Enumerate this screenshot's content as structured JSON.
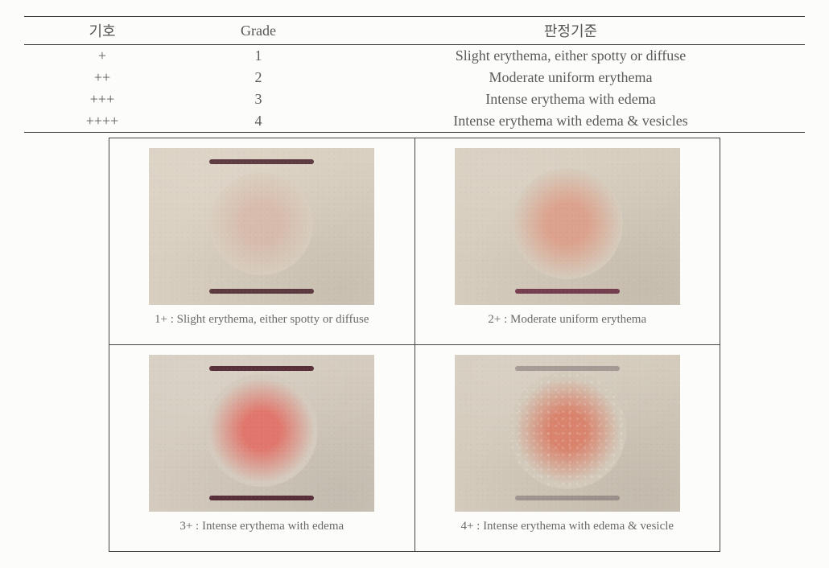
{
  "table": {
    "columns": [
      "기호",
      "Grade",
      "판정기준"
    ],
    "col_widths": [
      "20%",
      "20%",
      "60%"
    ],
    "rows": [
      [
        "+",
        "1",
        "Slight erythema, either spotty or diffuse"
      ],
      [
        "++",
        "2",
        "Moderate uniform erythema"
      ],
      [
        "+++",
        "3",
        "Intense erythema with edema"
      ],
      [
        "++++",
        "4",
        "Intense erythema with edema & vesicles"
      ]
    ],
    "border_color": "#3a3a3a",
    "text_color": "#5a5a5a",
    "fontsize": 18
  },
  "panels": [
    {
      "caption": "1+ : Slight erythema, either spotty or diffuse",
      "skin_base": "#d9cfc0",
      "spot": {
        "size": 128,
        "from": "#d8b6a6",
        "to": "#d9cfc0",
        "opacity": 0.75,
        "softness": 0.72
      },
      "marks": {
        "color": "#4e2a32",
        "show_top": true,
        "show_bot": true
      }
    },
    {
      "caption": "2+ : Moderate uniform erythema",
      "skin_base": "#d6ccbd",
      "spot": {
        "size": 138,
        "from": "#dd9d87",
        "to": "#d6ccbd",
        "opacity": 0.9,
        "softness": 0.7
      },
      "marks": {
        "color": "#6a2f44",
        "show_top": false,
        "show_bot": true
      }
    },
    {
      "caption": "3+ : Intense erythema with edema",
      "skin_base": "#d4cbbe",
      "spot": {
        "size": 140,
        "from": "#e1746a",
        "to": "#d4cbbe",
        "opacity": 0.98,
        "softness": 0.66
      },
      "marks": {
        "color": "#4a1e2a",
        "show_top": true,
        "show_bot": true
      }
    },
    {
      "caption": "4+ : Intense erythema with edema & vesicle",
      "skin_base": "#d3cabb",
      "spot": {
        "size": 146,
        "from": "#da826b",
        "to": "#d3cabb",
        "opacity": 0.98,
        "softness": 0.64,
        "vesicles": true
      },
      "marks": {
        "color": "#4a3a44",
        "show_top": true,
        "show_bot": true,
        "faint": true
      }
    }
  ],
  "grid": {
    "panel_img_w": 280,
    "panel_img_h": 195,
    "border_color": "#444444",
    "caption_fontsize": 15,
    "caption_color": "#6a6a6a"
  }
}
